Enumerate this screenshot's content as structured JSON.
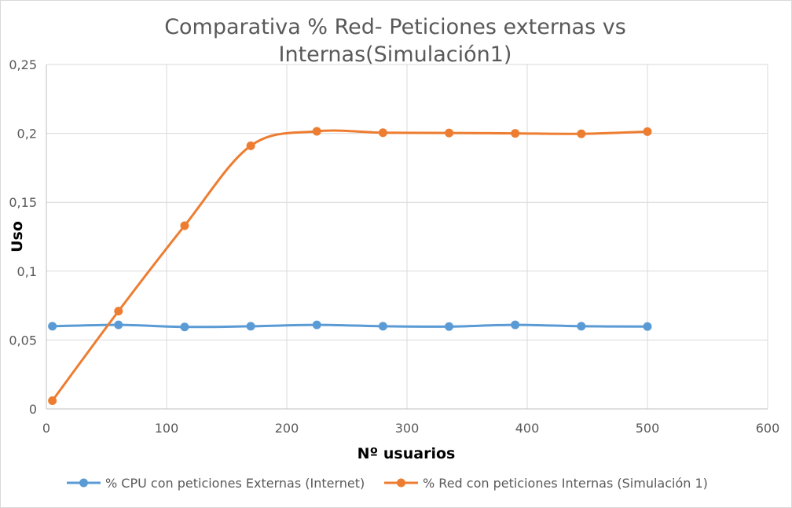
{
  "chart_data": {
    "type": "line",
    "title_line1": "Comparativa % Red- Peticiones externas vs",
    "title_line2": "Internas(Simulación1)",
    "xlabel": "Nº usuarios",
    "ylabel": "Uso",
    "xlim": [
      0,
      600
    ],
    "ylim": [
      0,
      0.25
    ],
    "x_ticks": [
      "0",
      "100",
      "200",
      "300",
      "400",
      "500",
      "600"
    ],
    "y_ticks": [
      "0",
      "0,05",
      "0,1",
      "0,15",
      "0,2",
      "0,25"
    ],
    "grid": true,
    "smooth": true,
    "legend_position": "bottom",
    "series": [
      {
        "name": "% CPU con peticiones Externas (Internet)",
        "color": "#5b9bd5",
        "x": [
          5,
          60,
          115,
          170,
          225,
          280,
          335,
          390,
          445,
          500
        ],
        "y": [
          0.06,
          0.061,
          0.0595,
          0.06,
          0.061,
          0.06,
          0.0598,
          0.061,
          0.06,
          0.0598
        ]
      },
      {
        "name": "% Red con peticiones Internas (Simulación 1)",
        "color": "#ed7d31",
        "x": [
          5,
          60,
          115,
          170,
          225,
          280,
          335,
          390,
          445,
          500
        ],
        "y": [
          0.006,
          0.071,
          0.133,
          0.191,
          0.2015,
          0.2005,
          0.2003,
          0.2,
          0.1997,
          0.2013
        ]
      }
    ]
  }
}
